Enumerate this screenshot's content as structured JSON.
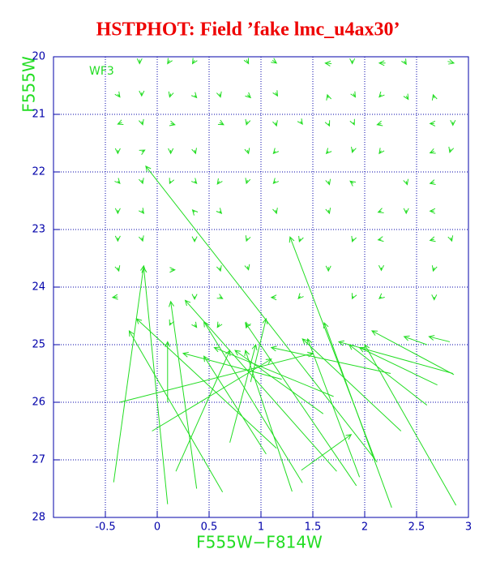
{
  "chart_data": {
    "type": "quiver",
    "title": "HSTPHOT: Field ’fake lmc_u4ax30’",
    "xlabel": "F555W−F814W",
    "ylabel": "F555W",
    "annotation": "WF3",
    "xlim": [
      -1,
      3
    ],
    "ylim": [
      20,
      28
    ],
    "y_inverted": true,
    "xticks": [
      -0.5,
      0,
      0.5,
      1,
      1.5,
      2,
      2.5,
      3
    ],
    "yticks": [
      20,
      21,
      22,
      23,
      24,
      25,
      26,
      27,
      28
    ],
    "grid": true,
    "color": "#22dd22",
    "axis_color": "#0000aa",
    "title_color": "#ee0000",
    "arrows": [
      {
        "x": 2.12,
        "y": 27.04,
        "x_end": -0.11,
        "y_end": 21.9
      },
      {
        "x": -0.36,
        "y": 26.0,
        "x_end": 1.5,
        "y_end": 25.15
      },
      {
        "x": -0.42,
        "y": 27.39,
        "x_end": -0.13,
        "y_end": 23.63
      },
      {
        "x": 0.1,
        "y": 27.77,
        "x_end": -0.13,
        "y_end": 23.66
      },
      {
        "x": 0.38,
        "y": 27.5,
        "x_end": 0.13,
        "y_end": 24.25
      },
      {
        "x": 0.63,
        "y": 27.56,
        "x_end": -0.27,
        "y_end": 24.76
      },
      {
        "x": 2.1,
        "y": 27.0,
        "x_end": 1.28,
        "y_end": 23.13
      },
      {
        "x": 1.39,
        "y": 27.18,
        "x_end": 1.87,
        "y_end": 26.56
      },
      {
        "x": 2.26,
        "y": 27.83,
        "x_end": 1.61,
        "y_end": 24.62
      },
      {
        "x": 2.88,
        "y": 27.79,
        "x_end": 2.0,
        "y_end": 25.0
      },
      {
        "x": 2.86,
        "y": 25.52,
        "x_end": 2.07,
        "y_end": 24.76
      },
      {
        "x": 2.85,
        "y": 25.5,
        "x_end": 1.75,
        "y_end": 24.95
      },
      {
        "x": 2.6,
        "y": 25.0,
        "x_end": 2.38,
        "y_end": 24.86
      },
      {
        "x": 2.82,
        "y": 24.95,
        "x_end": 2.62,
        "y_end": 24.86
      },
      {
        "x": 2.6,
        "y": 26.05,
        "x_end": 1.85,
        "y_end": 25.0
      },
      {
        "x": 1.92,
        "y": 27.45,
        "x_end": 0.85,
        "y_end": 24.62
      },
      {
        "x": 1.73,
        "y": 27.2,
        "x_end": 0.27,
        "y_end": 24.23
      },
      {
        "x": 1.4,
        "y": 27.4,
        "x_end": 0.45,
        "y_end": 24.6
      },
      {
        "x": 1.15,
        "y": 26.8,
        "x_end": -0.2,
        "y_end": 24.55
      },
      {
        "x": 1.3,
        "y": 27.55,
        "x_end": 0.85,
        "y_end": 25.1
      },
      {
        "x": 0.18,
        "y": 27.2,
        "x_end": 0.7,
        "y_end": 25.1
      },
      {
        "x": 0.1,
        "y": 26.0,
        "x_end": 0.1,
        "y_end": 24.95
      },
      {
        "x": 1.95,
        "y": 27.3,
        "x_end": 1.45,
        "y_end": 24.9
      },
      {
        "x": 1.6,
        "y": 26.2,
        "x_end": 0.75,
        "y_end": 25.1
      },
      {
        "x": 2.35,
        "y": 26.5,
        "x_end": 1.4,
        "y_end": 24.9
      },
      {
        "x": 1.05,
        "y": 26.9,
        "x_end": 0.45,
        "y_end": 25.2
      },
      {
        "x": 0.7,
        "y": 26.7,
        "x_end": 0.95,
        "y_end": 25.0
      },
      {
        "x": 1.7,
        "y": 25.9,
        "x_end": 0.55,
        "y_end": 25.05
      },
      {
        "x": 2.7,
        "y": 25.7,
        "x_end": 1.95,
        "y_end": 25.05
      },
      {
        "x": 1.2,
        "y": 25.6,
        "x_end": 0.25,
        "y_end": 25.15
      },
      {
        "x": 2.25,
        "y": 25.5,
        "x_end": 1.1,
        "y_end": 25.05
      },
      {
        "x": 0.9,
        "y": 25.65,
        "x_end": 1.05,
        "y_end": 24.55
      },
      {
        "x": -0.05,
        "y": 26.5,
        "x_end": 1.1,
        "y_end": 25.25
      },
      {
        "x": -0.17,
        "y": 20.05,
        "x_end": -0.17,
        "y_end": 20.12
      },
      {
        "x": 0.12,
        "y": 20.06,
        "x_end": 0.1,
        "y_end": 20.12
      },
      {
        "x": 0.36,
        "y": 20.06,
        "x_end": 0.34,
        "y_end": 20.12
      },
      {
        "x": 0.86,
        "y": 20.05,
        "x_end": 0.88,
        "y_end": 20.12
      },
      {
        "x": 1.11,
        "y": 20.06,
        "x_end": 1.15,
        "y_end": 20.11
      },
      {
        "x": 1.68,
        "y": 20.12,
        "x_end": 1.62,
        "y_end": 20.11
      },
      {
        "x": 1.88,
        "y": 20.06,
        "x_end": 1.88,
        "y_end": 20.12
      },
      {
        "x": 2.2,
        "y": 20.11,
        "x_end": 2.14,
        "y_end": 20.11
      },
      {
        "x": 2.38,
        "y": 20.07,
        "x_end": 2.4,
        "y_end": 20.13
      },
      {
        "x": 2.8,
        "y": 20.08,
        "x_end": 2.86,
        "y_end": 20.11
      },
      {
        "x": -0.38,
        "y": 20.65,
        "x_end": -0.36,
        "y_end": 20.7
      },
      {
        "x": -0.15,
        "y": 20.62,
        "x_end": -0.15,
        "y_end": 20.68
      },
      {
        "x": 0.13,
        "y": 20.64,
        "x_end": 0.12,
        "y_end": 20.7
      },
      {
        "x": 0.36,
        "y": 20.67,
        "x_end": 0.38,
        "y_end": 20.71
      },
      {
        "x": 0.6,
        "y": 20.64,
        "x_end": 0.61,
        "y_end": 20.7
      },
      {
        "x": 0.87,
        "y": 20.66,
        "x_end": 0.9,
        "y_end": 20.71
      },
      {
        "x": 1.14,
        "y": 20.62,
        "x_end": 1.16,
        "y_end": 20.68
      },
      {
        "x": 1.65,
        "y": 20.72,
        "x_end": 1.64,
        "y_end": 20.66
      },
      {
        "x": 1.89,
        "y": 20.64,
        "x_end": 1.91,
        "y_end": 20.7
      },
      {
        "x": 2.16,
        "y": 20.66,
        "x_end": 2.14,
        "y_end": 20.7
      },
      {
        "x": 2.4,
        "y": 20.68,
        "x_end": 2.42,
        "y_end": 20.74
      },
      {
        "x": 2.67,
        "y": 20.72,
        "x_end": 2.66,
        "y_end": 20.66
      },
      {
        "x": -0.34,
        "y": 21.14,
        "x_end": -0.38,
        "y_end": 21.17
      },
      {
        "x": -0.15,
        "y": 21.12,
        "x_end": -0.14,
        "y_end": 21.18
      },
      {
        "x": 0.13,
        "y": 21.16,
        "x_end": 0.17,
        "y_end": 21.18
      },
      {
        "x": 0.6,
        "y": 21.14,
        "x_end": 0.64,
        "y_end": 21.18
      },
      {
        "x": 0.87,
        "y": 21.12,
        "x_end": 0.86,
        "y_end": 21.18
      },
      {
        "x": 1.14,
        "y": 21.14,
        "x_end": 1.15,
        "y_end": 21.2
      },
      {
        "x": 1.38,
        "y": 21.12,
        "x_end": 1.4,
        "y_end": 21.17
      },
      {
        "x": 1.65,
        "y": 21.16,
        "x_end": 1.66,
        "y_end": 21.2
      },
      {
        "x": 1.89,
        "y": 21.14,
        "x_end": 1.9,
        "y_end": 21.18
      },
      {
        "x": 2.16,
        "y": 21.16,
        "x_end": 2.12,
        "y_end": 21.18
      },
      {
        "x": 2.67,
        "y": 21.16,
        "x_end": 2.63,
        "y_end": 21.16
      },
      {
        "x": 2.85,
        "y": 21.13,
        "x_end": 2.85,
        "y_end": 21.19
      },
      {
        "x": -0.38,
        "y": 21.62,
        "x_end": -0.38,
        "y_end": 21.68
      },
      {
        "x": -0.15,
        "y": 21.65,
        "x_end": -0.12,
        "y_end": 21.62
      },
      {
        "x": 0.13,
        "y": 21.62,
        "x_end": 0.13,
        "y_end": 21.68
      },
      {
        "x": 0.36,
        "y": 21.62,
        "x_end": 0.37,
        "y_end": 21.68
      },
      {
        "x": 0.87,
        "y": 21.62,
        "x_end": 0.88,
        "y_end": 21.68
      },
      {
        "x": 1.14,
        "y": 21.64,
        "x_end": 1.12,
        "y_end": 21.68
      },
      {
        "x": 1.65,
        "y": 21.64,
        "x_end": 1.63,
        "y_end": 21.68
      },
      {
        "x": 1.89,
        "y": 21.6,
        "x_end": 1.88,
        "y_end": 21.66
      },
      {
        "x": 2.16,
        "y": 21.63,
        "x_end": 2.14,
        "y_end": 21.68
      },
      {
        "x": 2.67,
        "y": 21.64,
        "x_end": 2.63,
        "y_end": 21.67
      },
      {
        "x": 2.83,
        "y": 21.6,
        "x_end": 2.82,
        "y_end": 21.66
      },
      {
        "x": -0.38,
        "y": 22.16,
        "x_end": -0.36,
        "y_end": 22.2
      },
      {
        "x": -0.15,
        "y": 22.14,
        "x_end": -0.14,
        "y_end": 22.2
      },
      {
        "x": 0.13,
        "y": 22.16,
        "x_end": 0.12,
        "y_end": 22.2
      },
      {
        "x": 0.36,
        "y": 22.16,
        "x_end": 0.38,
        "y_end": 22.2
      },
      {
        "x": 0.6,
        "y": 22.16,
        "x_end": 0.58,
        "y_end": 22.21
      },
      {
        "x": 0.87,
        "y": 22.14,
        "x_end": 0.86,
        "y_end": 22.2
      },
      {
        "x": 1.14,
        "y": 22.16,
        "x_end": 1.12,
        "y_end": 22.2
      },
      {
        "x": 1.65,
        "y": 22.16,
        "x_end": 1.66,
        "y_end": 22.22
      },
      {
        "x": 1.89,
        "y": 22.2,
        "x_end": 1.86,
        "y_end": 22.16
      },
      {
        "x": 2.4,
        "y": 22.16,
        "x_end": 2.41,
        "y_end": 22.22
      },
      {
        "x": 2.67,
        "y": 22.18,
        "x_end": 2.63,
        "y_end": 22.2
      },
      {
        "x": -0.38,
        "y": 22.66,
        "x_end": -0.38,
        "y_end": 22.72
      },
      {
        "x": -0.15,
        "y": 22.67,
        "x_end": -0.13,
        "y_end": 22.72
      },
      {
        "x": 0.36,
        "y": 22.7,
        "x_end": 0.34,
        "y_end": 22.66
      },
      {
        "x": 0.6,
        "y": 22.68,
        "x_end": 0.62,
        "y_end": 22.72
      },
      {
        "x": 1.14,
        "y": 22.66,
        "x_end": 1.15,
        "y_end": 22.72
      },
      {
        "x": 1.65,
        "y": 22.66,
        "x_end": 1.66,
        "y_end": 22.72
      },
      {
        "x": 2.16,
        "y": 22.68,
        "x_end": 2.13,
        "y_end": 22.7
      },
      {
        "x": 2.4,
        "y": 22.66,
        "x_end": 2.4,
        "y_end": 22.72
      },
      {
        "x": 2.67,
        "y": 22.68,
        "x_end": 2.63,
        "y_end": 22.68
      },
      {
        "x": -0.38,
        "y": 23.14,
        "x_end": -0.38,
        "y_end": 23.2
      },
      {
        "x": -0.15,
        "y": 23.14,
        "x_end": -0.14,
        "y_end": 23.2
      },
      {
        "x": 0.36,
        "y": 23.16,
        "x_end": 0.36,
        "y_end": 23.21
      },
      {
        "x": 0.87,
        "y": 23.15,
        "x_end": 0.86,
        "y_end": 23.2
      },
      {
        "x": 1.38,
        "y": 23.16,
        "x_end": 1.37,
        "y_end": 23.21
      },
      {
        "x": 1.89,
        "y": 23.16,
        "x_end": 1.88,
        "y_end": 23.21
      },
      {
        "x": 2.16,
        "y": 23.17,
        "x_end": 2.13,
        "y_end": 23.18
      },
      {
        "x": 2.67,
        "y": 23.17,
        "x_end": 2.63,
        "y_end": 23.19
      },
      {
        "x": 2.83,
        "y": 23.14,
        "x_end": 2.84,
        "y_end": 23.2
      },
      {
        "x": -0.38,
        "y": 23.66,
        "x_end": -0.37,
        "y_end": 23.72
      },
      {
        "x": 0.13,
        "y": 23.7,
        "x_end": 0.17,
        "y_end": 23.7
      },
      {
        "x": 0.6,
        "y": 23.66,
        "x_end": 0.61,
        "y_end": 23.72
      },
      {
        "x": 0.87,
        "y": 23.64,
        "x_end": 0.88,
        "y_end": 23.7
      },
      {
        "x": 1.65,
        "y": 23.65,
        "x_end": 1.65,
        "y_end": 23.72
      },
      {
        "x": 2.16,
        "y": 23.66,
        "x_end": 2.16,
        "y_end": 23.71
      },
      {
        "x": 2.67,
        "y": 23.66,
        "x_end": 2.66,
        "y_end": 23.72
      },
      {
        "x": -0.38,
        "y": 24.17,
        "x_end": -0.43,
        "y_end": 24.18
      },
      {
        "x": 0.36,
        "y": 24.16,
        "x_end": 0.36,
        "y_end": 24.21
      },
      {
        "x": 0.6,
        "y": 24.17,
        "x_end": 0.63,
        "y_end": 24.2
      },
      {
        "x": 1.14,
        "y": 24.18,
        "x_end": 1.1,
        "y_end": 24.18
      },
      {
        "x": 1.38,
        "y": 24.16,
        "x_end": 1.36,
        "y_end": 24.2
      },
      {
        "x": 1.89,
        "y": 24.16,
        "x_end": 1.88,
        "y_end": 24.2
      },
      {
        "x": 2.16,
        "y": 24.17,
        "x_end": 2.14,
        "y_end": 24.2
      },
      {
        "x": 2.67,
        "y": 24.17,
        "x_end": 2.67,
        "y_end": 24.22
      },
      {
        "x": 0.36,
        "y": 24.65,
        "x_end": 0.38,
        "y_end": 24.7
      },
      {
        "x": 0.6,
        "y": 24.64,
        "x_end": 0.58,
        "y_end": 24.7
      },
      {
        "x": 0.87,
        "y": 24.66,
        "x_end": 0.86,
        "y_end": 24.7
      },
      {
        "x": 0.13,
        "y": 24.62,
        "x_end": 0.12,
        "y_end": 24.66
      }
    ]
  }
}
